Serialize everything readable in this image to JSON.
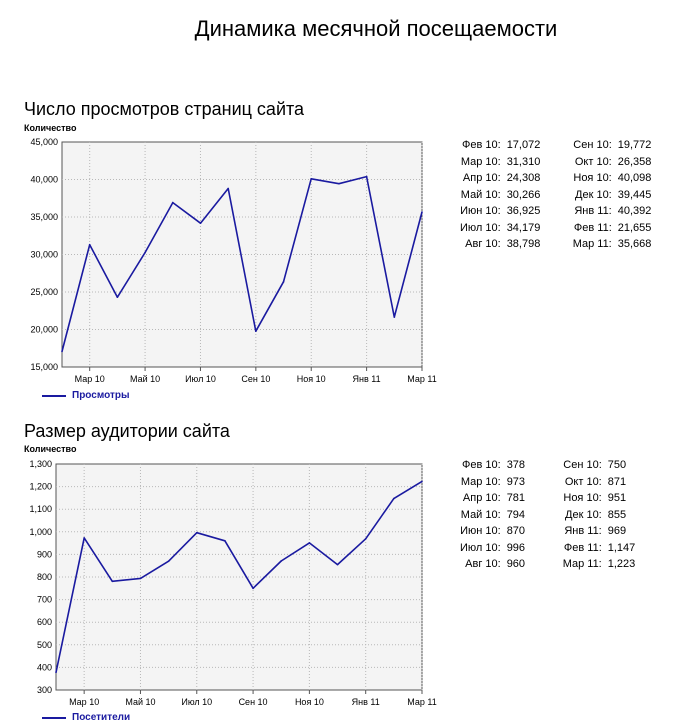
{
  "page_title": "Динамика месячной посещаемости",
  "charts": [
    {
      "section_title": "Число просмотров страниц сайта",
      "ylabel": "Количество",
      "legend": "Просмотры",
      "table_left": [
        {
          "label": "Фев 10:",
          "value": "17,072"
        },
        {
          "label": "Мар 10:",
          "value": "31,310"
        },
        {
          "label": "Апр 10:",
          "value": "24,308"
        },
        {
          "label": "Май 10:",
          "value": "30,266"
        },
        {
          "label": "Июн 10:",
          "value": "36,925"
        },
        {
          "label": "Июл 10:",
          "value": "34,179"
        },
        {
          "label": "Авг 10:",
          "value": "38,798"
        }
      ],
      "table_right": [
        {
          "label": "Сен 10:",
          "value": "19,772"
        },
        {
          "label": "Окт 10:",
          "value": "26,358"
        },
        {
          "label": "Ноя 10:",
          "value": "40,098"
        },
        {
          "label": "Дек 10:",
          "value": "39,445"
        },
        {
          "label": "Янв 11:",
          "value": "40,392"
        },
        {
          "label": "Фев 11:",
          "value": "21,655"
        },
        {
          "label": "Мар 11:",
          "value": "35,668"
        }
      ]
    },
    {
      "section_title": "Размер аудитории сайта",
      "ylabel": "Количество",
      "legend": "Посетители",
      "table_left": [
        {
          "label": "Фев 10:",
          "value": "378"
        },
        {
          "label": "Мар 10:",
          "value": "973"
        },
        {
          "label": "Апр 10:",
          "value": "781"
        },
        {
          "label": "Май 10:",
          "value": "794"
        },
        {
          "label": "Июн 10:",
          "value": "870"
        },
        {
          "label": "Июл 10:",
          "value": "996"
        },
        {
          "label": "Авг 10:",
          "value": "960"
        }
      ],
      "table_right": [
        {
          "label": "Сен 10:",
          "value": "750"
        },
        {
          "label": "Окт 10:",
          "value": "871"
        },
        {
          "label": "Ноя 10:",
          "value": "951"
        },
        {
          "label": "Дек 10:",
          "value": "855"
        },
        {
          "label": "Янв 11:",
          "value": "969"
        },
        {
          "label": "Фев 11:",
          "value": "1,147"
        },
        {
          "label": "Мар 11:",
          "value": "1,223"
        }
      ]
    }
  ],
  "chart_data": [
    {
      "type": "line",
      "title": "Число просмотров страниц сайта",
      "ylabel": "Количество",
      "xlabel": "",
      "x": [
        "Фев 10",
        "Мар 10",
        "Апр 10",
        "Май 10",
        "Июн 10",
        "Июл 10",
        "Авг 10",
        "Сен 10",
        "Окт 10",
        "Ноя 10",
        "Дек 10",
        "Янв 11",
        "Фев 11",
        "Мар 11"
      ],
      "xticks": [
        "Мар 10",
        "Май 10",
        "Июл 10",
        "Сен 10",
        "Ноя 10",
        "Янв 11",
        "Мар 11"
      ],
      "ylim": [
        15000,
        45000
      ],
      "yticks": [
        "15,000",
        "20,000",
        "25,000",
        "30,000",
        "35,000",
        "40,000",
        "45,000"
      ],
      "grid": true,
      "legend_position": "bottom-left",
      "line_color": "#1a1aa0",
      "series": [
        {
          "name": "Просмотры",
          "values": [
            17072,
            31310,
            24308,
            30266,
            36925,
            34179,
            38798,
            19772,
            26358,
            40098,
            39445,
            40392,
            21655,
            35668
          ]
        }
      ]
    },
    {
      "type": "line",
      "title": "Размер аудитории сайта",
      "ylabel": "Количество",
      "xlabel": "",
      "x": [
        "Фев 10",
        "Мар 10",
        "Апр 10",
        "Май 10",
        "Июн 10",
        "Июл 10",
        "Авг 10",
        "Сен 10",
        "Окт 10",
        "Ноя 10",
        "Дек 10",
        "Янв 11",
        "Фев 11",
        "Мар 11"
      ],
      "xticks": [
        "Мар 10",
        "Май 10",
        "Июл 10",
        "Сен 10",
        "Ноя 10",
        "Янв 11",
        "Мар 11"
      ],
      "ylim": [
        300,
        1300
      ],
      "yticks": [
        "300",
        "400",
        "500",
        "600",
        "700",
        "800",
        "900",
        "1,000",
        "1,100",
        "1,200",
        "1,300"
      ],
      "grid": true,
      "legend_position": "bottom-left",
      "line_color": "#1a1aa0",
      "series": [
        {
          "name": "Посетители",
          "values": [
            378,
            973,
            781,
            794,
            870,
            996,
            960,
            750,
            871,
            951,
            855,
            969,
            1147,
            1223
          ]
        }
      ]
    }
  ]
}
